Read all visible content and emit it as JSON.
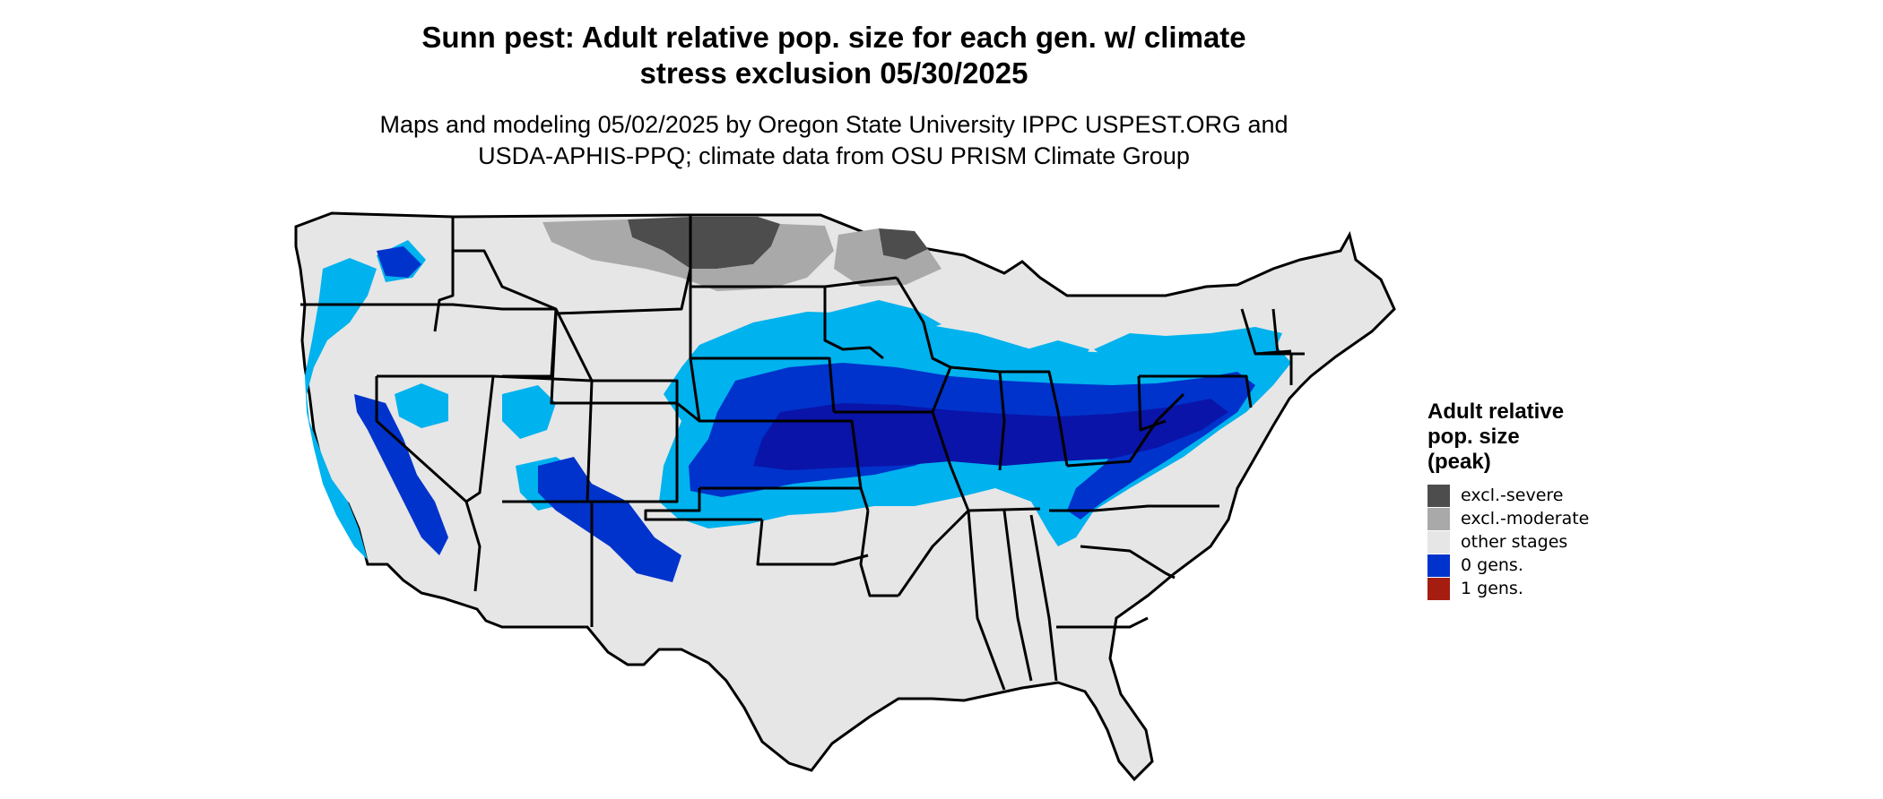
{
  "header": {
    "title_line1": "Sunn pest: Adult relative pop. size for each gen. w/ climate",
    "title_line2": "stress exclusion 05/30/2025",
    "subtitle_line1": "Maps and modeling 05/02/2025 by Oregon State University IPPC USPEST.ORG and",
    "subtitle_line2": "USDA-APHIS-PPQ; climate data from OSU PRISM Climate Group"
  },
  "legend": {
    "title_line1": "Adult relative",
    "title_line2": "pop. size",
    "title_line3": "(peak)",
    "items": [
      {
        "label": "excl.-severe",
        "color": "#4d4d4d"
      },
      {
        "label": "excl.-moderate",
        "color": "#a9a9a9"
      },
      {
        "label": "other stages",
        "color": "#e6e6e6"
      },
      {
        "label": "0 gens.",
        "color": "#0033cc"
      },
      {
        "label": "1 gens.",
        "color": "#a51d10"
      }
    ]
  },
  "map_colors": {
    "land": "#e6e6e6",
    "excl_severe": "#4d4d4d",
    "excl_moderate": "#a9a9a9",
    "pop_light": "#00b2ee",
    "pop_mid": "#0033cc",
    "pop_dark": "#0a14a8",
    "border": "#000000"
  }
}
